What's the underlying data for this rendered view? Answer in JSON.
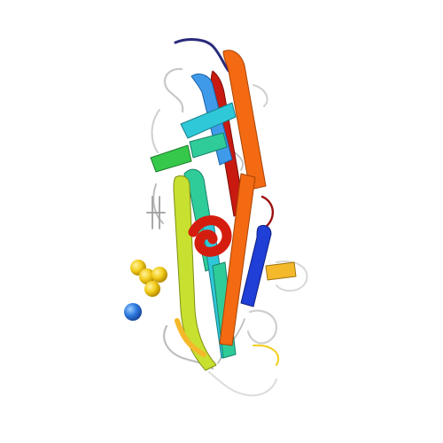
{
  "image": {
    "subject": "protein ribbon",
    "background_color": "#ffffff",
    "palette": {
      "blue": "#1f3fd6",
      "light_blue": "#3f9bea",
      "cyan": "#2fc8d8",
      "teal": "#2fcc9a",
      "green": "#35c84a",
      "lime": "#a8e13a",
      "yellow": "#f2e321",
      "orange_yellow": "#f4b92a",
      "orange": "#f36a12",
      "red": "#d51d0f",
      "dark_red": "#9a1010",
      "navy": "#2a2a7a",
      "coil_grey": "#d9d9d9",
      "ligand_yellow": "#f2cd1b",
      "ligand_blue": "#2f7be0"
    }
  }
}
